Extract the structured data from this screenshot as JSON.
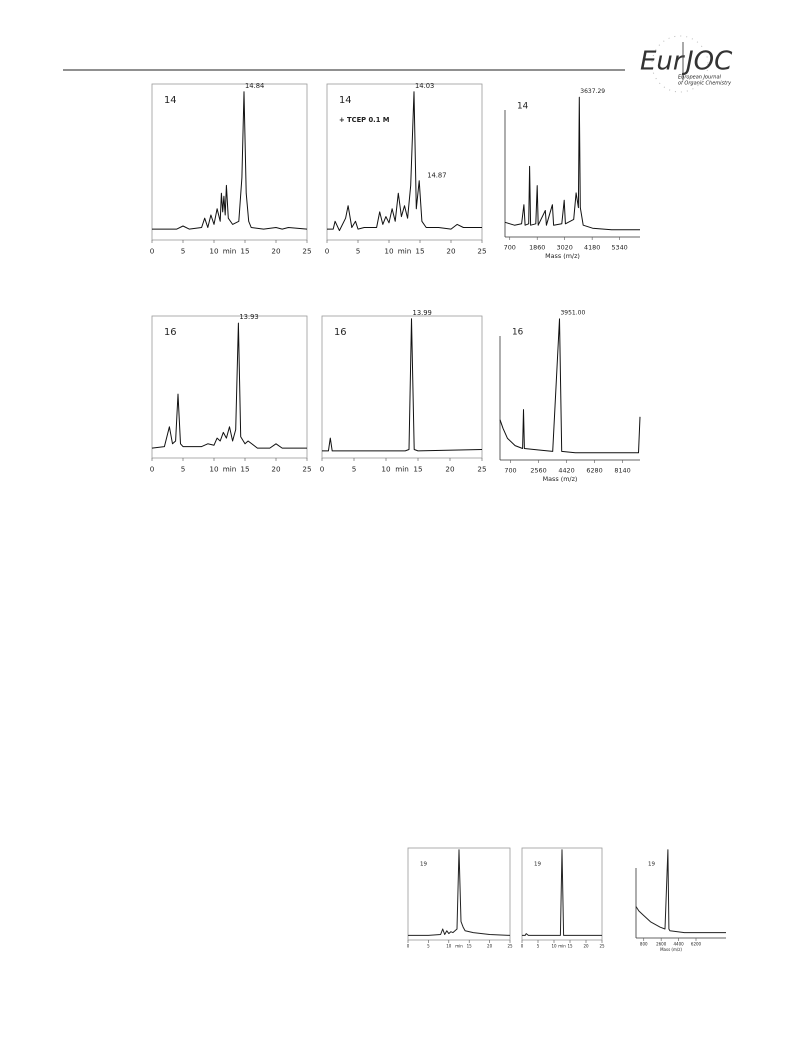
{
  "header": {
    "logo_left": "Eur",
    "logo_right": "JOC",
    "journal_line1": "European Journal",
    "journal_line2": "of Organic Chemistry"
  },
  "chart_data": [
    {
      "type": "line",
      "label": "14",
      "peak_label": "14.84",
      "xlabel": "min",
      "frame": "box",
      "color": "#111111",
      "x": [
        0,
        4,
        5,
        6,
        8,
        8.5,
        9,
        9.5,
        10,
        10.5,
        11,
        11.2,
        11.4,
        11.6,
        11.8,
        12,
        12.3,
        13,
        14,
        14.5,
        14.84,
        15.2,
        15.6,
        16,
        18,
        20,
        21,
        22,
        25
      ],
      "values": [
        7,
        7,
        9,
        7,
        8,
        14,
        8,
        16,
        10,
        20,
        12,
        30,
        18,
        28,
        16,
        35,
        14,
        10,
        12,
        40,
        95,
        30,
        12,
        8,
        7,
        8,
        7,
        8,
        7
      ],
      "xlim": [
        0,
        25
      ],
      "xticks": [
        0,
        5,
        10,
        15,
        20,
        25
      ],
      "ylim": [
        0,
        100
      ]
    },
    {
      "type": "line",
      "label": "14",
      "note": "+ TCEP 0.1 M",
      "peak_label": "14.03",
      "second_peak_label": "14.87",
      "xlabel": "min",
      "frame": "box",
      "color": "#111111",
      "x": [
        0,
        1,
        1.3,
        2,
        3,
        3.4,
        4,
        4.6,
        5,
        6,
        8,
        8.5,
        9,
        9.5,
        10,
        10.5,
        11,
        11.5,
        12,
        12.5,
        13,
        13.5,
        14.03,
        14.4,
        14.87,
        15.3,
        16,
        18,
        20,
        21,
        22,
        25
      ],
      "values": [
        7,
        7,
        12,
        6,
        14,
        22,
        8,
        12,
        7,
        8,
        8,
        18,
        10,
        15,
        11,
        20,
        12,
        30,
        15,
        22,
        14,
        35,
        95,
        20,
        38,
        12,
        8,
        8,
        7,
        10,
        8,
        8
      ],
      "xlim": [
        0,
        25
      ],
      "xticks": [
        0,
        5,
        10,
        15,
        20,
        25
      ],
      "ylim": [
        0,
        100
      ]
    },
    {
      "type": "line",
      "label": "14",
      "peak_label": "3637.29",
      "xlabel": "Mass (m/z)",
      "frame": "axes",
      "color": "#111111",
      "x": [
        500,
        900,
        1200,
        1300,
        1350,
        1500,
        1540,
        1580,
        1800,
        1860,
        1900,
        2200,
        2250,
        2500,
        2550,
        2900,
        3000,
        3050,
        3400,
        3500,
        3600,
        3637.29,
        3680,
        3800,
        4200,
        5000,
        6200
      ],
      "values": [
        10,
        8,
        9,
        22,
        8,
        9,
        48,
        8,
        9,
        35,
        8,
        18,
        8,
        22,
        8,
        9,
        25,
        9,
        12,
        30,
        20,
        95,
        20,
        8,
        6,
        5,
        5
      ],
      "xlim": [
        500,
        6200
      ],
      "xticks": [
        700,
        1860,
        3020,
        4180,
        5340
      ],
      "ylim": [
        0,
        100
      ]
    },
    {
      "type": "line",
      "label": "16",
      "peak_label": "13.93",
      "xlabel": "min",
      "frame": "box",
      "color": "#111111",
      "x": [
        0,
        2,
        2.8,
        3.3,
        3.8,
        4.2,
        4.6,
        5,
        8,
        9,
        10,
        10.5,
        11,
        11.5,
        12,
        12.5,
        13,
        13.5,
        13.93,
        14.3,
        15,
        15.5,
        17,
        19,
        20,
        21,
        25
      ],
      "values": [
        7,
        8,
        22,
        10,
        12,
        45,
        10,
        8,
        8,
        10,
        9,
        14,
        12,
        18,
        14,
        22,
        12,
        20,
        95,
        15,
        10,
        12,
        7,
        7,
        10,
        7,
        7
      ],
      "xlim": [
        0,
        25
      ],
      "xticks": [
        0,
        5,
        10,
        15,
        20,
        25
      ],
      "ylim": [
        0,
        100
      ]
    },
    {
      "type": "line",
      "label": "16",
      "peak_label": "13.99",
      "xlabel": "min",
      "frame": "box",
      "color": "#111111",
      "x": [
        0,
        1,
        1.3,
        1.6,
        2,
        13,
        13.6,
        13.99,
        14.4,
        15,
        25
      ],
      "values": [
        5,
        5,
        14,
        5,
        5,
        5,
        6,
        98,
        6,
        5,
        6
      ],
      "xlim": [
        0,
        25
      ],
      "xticks": [
        0,
        5,
        10,
        15,
        20,
        25
      ],
      "ylim": [
        0,
        100
      ]
    },
    {
      "type": "line",
      "label": "16",
      "peak_label": "3951.00",
      "xlabel": "Mass (m/z)",
      "frame": "axes",
      "color": "#111111",
      "x": [
        0,
        200,
        500,
        1000,
        1500,
        1560,
        1620,
        2500,
        3500,
        3951,
        4100,
        5000,
        7000,
        9200,
        9300
      ],
      "values": [
        28,
        22,
        15,
        10,
        8,
        35,
        8,
        7,
        6,
        98,
        6,
        5,
        5,
        5,
        30
      ],
      "xlim": [
        0,
        9300
      ],
      "xticks": [
        700,
        2560,
        4420,
        6280,
        8140
      ],
      "ylim": [
        0,
        100
      ]
    },
    {
      "type": "line",
      "label": "19",
      "xlabel": "min",
      "frame": "box",
      "color": "#222222",
      "x": [
        0,
        5,
        8,
        8.5,
        9,
        9.5,
        10,
        10.5,
        11,
        12,
        12.5,
        13,
        13.5,
        14,
        16,
        20,
        25
      ],
      "values": [
        5,
        5,
        6,
        12,
        6,
        10,
        7,
        9,
        8,
        12,
        98,
        20,
        14,
        10,
        8,
        6,
        5
      ],
      "xlim": [
        0,
        25
      ],
      "xticks": [
        0,
        5,
        10,
        15,
        20,
        25
      ],
      "ylim": [
        0,
        100
      ]
    },
    {
      "type": "line",
      "label": "19",
      "xlabel": "min",
      "frame": "box",
      "color": "#222222",
      "x": [
        0,
        1,
        1.3,
        2,
        12,
        12.5,
        13,
        25
      ],
      "values": [
        5,
        5,
        7,
        5,
        5,
        98,
        5,
        5
      ],
      "xlim": [
        0,
        25
      ],
      "xticks": [
        0,
        5,
        10,
        15,
        20,
        25
      ],
      "ylim": [
        0,
        100
      ]
    },
    {
      "type": "line",
      "label": "19",
      "xlabel": "Mass (m/z)",
      "frame": "axes",
      "color": "#222222",
      "x": [
        0,
        300,
        800,
        1500,
        2500,
        3000,
        3300,
        3400,
        3500,
        5000,
        9300
      ],
      "values": [
        35,
        30,
        25,
        18,
        12,
        10,
        98,
        10,
        8,
        6,
        6
      ],
      "xlim": [
        0,
        9300
      ],
      "xticks": [
        800,
        2600,
        4400,
        6200
      ],
      "ylim": [
        0,
        100
      ]
    }
  ]
}
